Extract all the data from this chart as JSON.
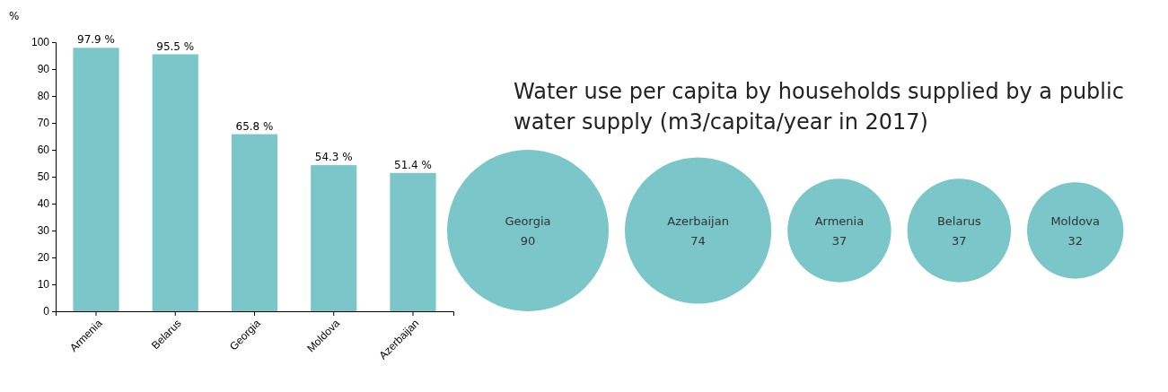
{
  "chart_data": [
    {
      "type": "bar",
      "ylabel": "%",
      "categories": [
        "Armenia",
        "Belarus",
        "Georgia",
        "Moldova",
        "Azerbaijan"
      ],
      "values": [
        97.9,
        95.5,
        65.8,
        54.3,
        51.4
      ],
      "value_labels": [
        "97.9 %",
        "95.5 %",
        "65.8 %",
        "54.3 %",
        "51.4 %"
      ],
      "color": "#7ac6c9",
      "ylim": [
        0,
        100
      ],
      "yticks": [
        0,
        10,
        20,
        30,
        40,
        50,
        60,
        70,
        80,
        90,
        100
      ],
      "grid": false
    },
    {
      "type": "other",
      "title": "Water use per capita by households supplied by a public water supply (m3/capita/year in 2017)",
      "categories": [
        "Georgia",
        "Azerbaijan",
        "Armenia",
        "Belarus",
        "Moldova"
      ],
      "values": [
        90,
        74,
        37,
        37,
        32
      ],
      "color": "#7ac6c9",
      "data_labels": true
    }
  ]
}
